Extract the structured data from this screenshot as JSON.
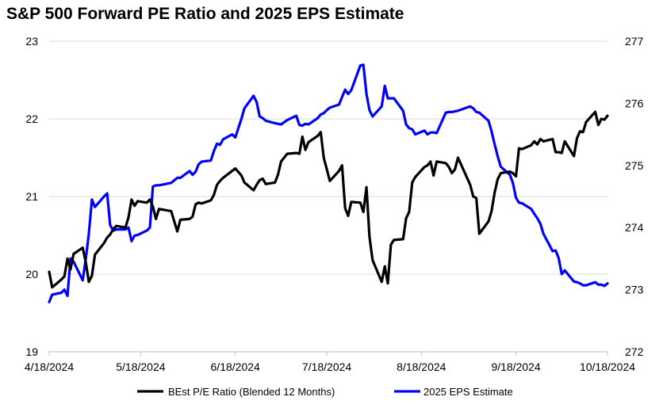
{
  "chart_data": {
    "type": "line",
    "title": "S&P 500 Forward PE Ratio and 2025 EPS Estimate",
    "xlabel": "",
    "ylabel": "",
    "y2label": "",
    "x_ticks": [
      "4/18/2024",
      "5/18/2024",
      "6/18/2024",
      "7/18/2024",
      "8/18/2024",
      "9/18/2024",
      "10/18/2024"
    ],
    "y_left": {
      "min": 19,
      "max": 23,
      "ticks": [
        "19",
        "20",
        "21",
        "22",
        "23"
      ]
    },
    "y_right": {
      "min": 272,
      "max": 277,
      "ticks": [
        "272",
        "273",
        "274",
        "275",
        "276",
        "277"
      ]
    },
    "grid": "horizontal",
    "legend_position": "bottom",
    "series": [
      {
        "name": "BEst P/E Ratio (Blended 12 Months)",
        "axis": "left",
        "color": "#000000",
        "points": [
          [
            "2024-04-18",
            20.03
          ],
          [
            "2024-04-19",
            19.83
          ],
          [
            "2024-04-22",
            19.93
          ],
          [
            "2024-04-23",
            19.97
          ],
          [
            "2024-04-24",
            20.2
          ],
          [
            "2024-04-25",
            20.06
          ],
          [
            "2024-04-26",
            20.26
          ],
          [
            "2024-04-29",
            20.34
          ],
          [
            "2024-04-30",
            20.15
          ],
          [
            "2024-05-01",
            19.9
          ],
          [
            "2024-05-02",
            19.98
          ],
          [
            "2024-05-03",
            20.25
          ],
          [
            "2024-05-06",
            20.4
          ],
          [
            "2024-05-07",
            20.47
          ],
          [
            "2024-05-08",
            20.51
          ],
          [
            "2024-05-09",
            20.58
          ],
          [
            "2024-05-10",
            20.62
          ],
          [
            "2024-05-13",
            20.6
          ],
          [
            "2024-05-14",
            20.73
          ],
          [
            "2024-05-15",
            20.96
          ],
          [
            "2024-05-16",
            20.88
          ],
          [
            "2024-05-17",
            20.94
          ],
          [
            "2024-05-20",
            20.92
          ],
          [
            "2024-05-21",
            20.96
          ],
          [
            "2024-05-22",
            20.87
          ],
          [
            "2024-05-23",
            20.71
          ],
          [
            "2024-05-24",
            20.84
          ],
          [
            "2024-05-28",
            20.81
          ],
          [
            "2024-05-29",
            20.68
          ],
          [
            "2024-05-30",
            20.55
          ],
          [
            "2024-05-31",
            20.7
          ],
          [
            "2024-06-03",
            20.71
          ],
          [
            "2024-06-04",
            20.74
          ],
          [
            "2024-06-05",
            20.9
          ],
          [
            "2024-06-06",
            20.92
          ],
          [
            "2024-06-07",
            20.91
          ],
          [
            "2024-06-10",
            20.95
          ],
          [
            "2024-06-11",
            21.02
          ],
          [
            "2024-06-12",
            21.15
          ],
          [
            "2024-06-13",
            21.2
          ],
          [
            "2024-06-14",
            21.24
          ],
          [
            "2024-06-17",
            21.33
          ],
          [
            "2024-06-18",
            21.36
          ],
          [
            "2024-06-20",
            21.27
          ],
          [
            "2024-06-21",
            21.18
          ],
          [
            "2024-06-24",
            21.08
          ],
          [
            "2024-06-25",
            21.15
          ],
          [
            "2024-06-26",
            21.21
          ],
          [
            "2024-06-27",
            21.23
          ],
          [
            "2024-06-28",
            21.16
          ],
          [
            "2024-07-01",
            21.18
          ],
          [
            "2024-07-02",
            21.28
          ],
          [
            "2024-07-03",
            21.45
          ],
          [
            "2024-07-05",
            21.55
          ],
          [
            "2024-07-08",
            21.56
          ],
          [
            "2024-07-09",
            21.55
          ],
          [
            "2024-07-10",
            21.77
          ],
          [
            "2024-07-11",
            21.6
          ],
          [
            "2024-07-12",
            21.7
          ],
          [
            "2024-07-15",
            21.78
          ],
          [
            "2024-07-16",
            21.83
          ],
          [
            "2024-07-17",
            21.5
          ],
          [
            "2024-07-18",
            21.35
          ],
          [
            "2024-07-19",
            21.2
          ],
          [
            "2024-07-22",
            21.33
          ],
          [
            "2024-07-23",
            21.4
          ],
          [
            "2024-07-24",
            20.85
          ],
          [
            "2024-07-25",
            20.75
          ],
          [
            "2024-07-26",
            20.93
          ],
          [
            "2024-07-29",
            20.92
          ],
          [
            "2024-07-30",
            20.8
          ],
          [
            "2024-07-31",
            21.12
          ],
          [
            "2024-08-01",
            20.48
          ],
          [
            "2024-08-02",
            20.18
          ],
          [
            "2024-08-05",
            19.9
          ],
          [
            "2024-08-06",
            20.1
          ],
          [
            "2024-08-07",
            19.88
          ],
          [
            "2024-08-08",
            20.38
          ],
          [
            "2024-08-09",
            20.44
          ],
          [
            "2024-08-12",
            20.45
          ],
          [
            "2024-08-13",
            20.72
          ],
          [
            "2024-08-14",
            20.8
          ],
          [
            "2024-08-15",
            21.18
          ],
          [
            "2024-08-16",
            21.25
          ],
          [
            "2024-08-19",
            21.38
          ],
          [
            "2024-08-20",
            21.4
          ],
          [
            "2024-08-21",
            21.45
          ],
          [
            "2024-08-22",
            21.27
          ],
          [
            "2024-08-23",
            21.45
          ],
          [
            "2024-08-26",
            21.43
          ],
          [
            "2024-08-27",
            21.38
          ],
          [
            "2024-08-28",
            21.3
          ],
          [
            "2024-08-29",
            21.35
          ],
          [
            "2024-08-30",
            21.5
          ],
          [
            "2024-09-03",
            21.15
          ],
          [
            "2024-09-04",
            21.0
          ],
          [
            "2024-09-05",
            20.98
          ],
          [
            "2024-09-06",
            20.52
          ],
          [
            "2024-09-09",
            20.68
          ],
          [
            "2024-09-10",
            20.81
          ],
          [
            "2024-09-11",
            21.05
          ],
          [
            "2024-09-12",
            21.22
          ],
          [
            "2024-09-13",
            21.3
          ],
          [
            "2024-09-16",
            21.32
          ],
          [
            "2024-09-17",
            21.3
          ],
          [
            "2024-09-18",
            21.26
          ],
          [
            "2024-09-19",
            21.62
          ],
          [
            "2024-09-20",
            21.61
          ],
          [
            "2024-09-23",
            21.66
          ],
          [
            "2024-09-24",
            21.71
          ],
          [
            "2024-09-25",
            21.67
          ],
          [
            "2024-09-26",
            21.74
          ],
          [
            "2024-09-27",
            21.71
          ],
          [
            "2024-09-30",
            21.74
          ],
          [
            "2024-10-01",
            21.57
          ],
          [
            "2024-10-02",
            21.57
          ],
          [
            "2024-10-03",
            21.56
          ],
          [
            "2024-10-04",
            21.71
          ],
          [
            "2024-10-07",
            21.52
          ],
          [
            "2024-10-08",
            21.75
          ],
          [
            "2024-10-09",
            21.84
          ],
          [
            "2024-10-10",
            21.83
          ],
          [
            "2024-10-11",
            21.96
          ],
          [
            "2024-10-14",
            22.09
          ],
          [
            "2024-10-15",
            21.92
          ],
          [
            "2024-10-16",
            22.0
          ],
          [
            "2024-10-17",
            21.99
          ],
          [
            "2024-10-18",
            22.04
          ]
        ]
      },
      {
        "name": "2025 EPS Estimate",
        "axis": "right",
        "color": "#0000ff",
        "points": [
          [
            "2024-04-18",
            272.8
          ],
          [
            "2024-04-19",
            272.92
          ],
          [
            "2024-04-22",
            272.95
          ],
          [
            "2024-04-23",
            273.0
          ],
          [
            "2024-04-24",
            272.9
          ],
          [
            "2024-04-25",
            273.5
          ],
          [
            "2024-04-26",
            273.45
          ],
          [
            "2024-04-29",
            273.15
          ],
          [
            "2024-04-30",
            273.5
          ],
          [
            "2024-05-01",
            273.9
          ],
          [
            "2024-05-02",
            274.45
          ],
          [
            "2024-05-03",
            274.33
          ],
          [
            "2024-05-06",
            274.5
          ],
          [
            "2024-05-07",
            274.55
          ],
          [
            "2024-05-08",
            274.04
          ],
          [
            "2024-05-09",
            273.95
          ],
          [
            "2024-05-10",
            273.97
          ],
          [
            "2024-05-13",
            273.97
          ],
          [
            "2024-05-14",
            274.0
          ],
          [
            "2024-05-15",
            273.78
          ],
          [
            "2024-05-16",
            273.87
          ],
          [
            "2024-05-17",
            273.88
          ],
          [
            "2024-05-20",
            273.95
          ],
          [
            "2024-05-21",
            274.0
          ],
          [
            "2024-05-22",
            274.66
          ],
          [
            "2024-05-23",
            274.68
          ],
          [
            "2024-05-24",
            274.68
          ],
          [
            "2024-05-28",
            274.72
          ],
          [
            "2024-05-29",
            274.76
          ],
          [
            "2024-05-30",
            274.8
          ],
          [
            "2024-05-31",
            274.8
          ],
          [
            "2024-06-03",
            274.91
          ],
          [
            "2024-06-04",
            274.85
          ],
          [
            "2024-06-05",
            274.9
          ],
          [
            "2024-06-06",
            275.02
          ],
          [
            "2024-06-07",
            275.06
          ],
          [
            "2024-06-10",
            275.08
          ],
          [
            "2024-06-11",
            275.23
          ],
          [
            "2024-06-12",
            275.35
          ],
          [
            "2024-06-13",
            275.33
          ],
          [
            "2024-06-14",
            275.42
          ],
          [
            "2024-06-17",
            275.5
          ],
          [
            "2024-06-18",
            275.45
          ],
          [
            "2024-06-20",
            275.75
          ],
          [
            "2024-06-21",
            275.92
          ],
          [
            "2024-06-24",
            276.12
          ],
          [
            "2024-06-25",
            276.02
          ],
          [
            "2024-06-26",
            275.79
          ],
          [
            "2024-06-27",
            275.76
          ],
          [
            "2024-06-28",
            275.72
          ],
          [
            "2024-07-01",
            275.68
          ],
          [
            "2024-07-02",
            275.67
          ],
          [
            "2024-07-03",
            275.66
          ],
          [
            "2024-07-05",
            275.73
          ],
          [
            "2024-07-08",
            275.8
          ],
          [
            "2024-07-09",
            275.65
          ],
          [
            "2024-07-10",
            275.64
          ],
          [
            "2024-07-11",
            275.67
          ],
          [
            "2024-07-12",
            275.66
          ],
          [
            "2024-07-15",
            275.76
          ],
          [
            "2024-07-16",
            275.82
          ],
          [
            "2024-07-17",
            275.84
          ],
          [
            "2024-07-18",
            275.89
          ],
          [
            "2024-07-19",
            275.93
          ],
          [
            "2024-07-22",
            275.98
          ],
          [
            "2024-07-23",
            276.1
          ],
          [
            "2024-07-24",
            276.22
          ],
          [
            "2024-07-25",
            276.15
          ],
          [
            "2024-07-26",
            276.21
          ],
          [
            "2024-07-29",
            276.61
          ],
          [
            "2024-07-30",
            276.62
          ],
          [
            "2024-07-31",
            276.15
          ],
          [
            "2024-08-01",
            275.89
          ],
          [
            "2024-08-02",
            275.79
          ],
          [
            "2024-08-05",
            275.95
          ],
          [
            "2024-08-06",
            276.28
          ],
          [
            "2024-08-07",
            276.08
          ],
          [
            "2024-08-08",
            276.08
          ],
          [
            "2024-08-09",
            276.08
          ],
          [
            "2024-08-12",
            275.88
          ],
          [
            "2024-08-13",
            275.66
          ],
          [
            "2024-08-14",
            275.6
          ],
          [
            "2024-08-15",
            275.58
          ],
          [
            "2024-08-16",
            275.5
          ],
          [
            "2024-08-19",
            275.56
          ],
          [
            "2024-08-20",
            275.5
          ],
          [
            "2024-08-21",
            275.53
          ],
          [
            "2024-08-22",
            275.53
          ],
          [
            "2024-08-23",
            275.52
          ],
          [
            "2024-08-26",
            275.85
          ],
          [
            "2024-08-27",
            275.86
          ],
          [
            "2024-08-28",
            275.86
          ],
          [
            "2024-08-29",
            275.87
          ],
          [
            "2024-08-30",
            275.88
          ],
          [
            "2024-09-03",
            275.95
          ],
          [
            "2024-09-04",
            275.92
          ],
          [
            "2024-09-05",
            275.86
          ],
          [
            "2024-09-06",
            275.85
          ],
          [
            "2024-09-09",
            275.72
          ],
          [
            "2024-09-10",
            275.55
          ],
          [
            "2024-09-11",
            275.34
          ],
          [
            "2024-09-12",
            275.15
          ],
          [
            "2024-09-13",
            274.98
          ],
          [
            "2024-09-16",
            274.85
          ],
          [
            "2024-09-17",
            274.72
          ],
          [
            "2024-09-18",
            274.48
          ],
          [
            "2024-09-19",
            274.4
          ],
          [
            "2024-09-20",
            274.39
          ],
          [
            "2024-09-23",
            274.3
          ],
          [
            "2024-09-24",
            274.22
          ],
          [
            "2024-09-25",
            274.15
          ],
          [
            "2024-09-26",
            274.06
          ],
          [
            "2024-09-27",
            273.9
          ],
          [
            "2024-09-30",
            273.62
          ],
          [
            "2024-10-01",
            273.63
          ],
          [
            "2024-10-02",
            273.51
          ],
          [
            "2024-10-03",
            273.25
          ],
          [
            "2024-10-04",
            273.31
          ],
          [
            "2024-10-07",
            273.13
          ],
          [
            "2024-10-08",
            273.12
          ],
          [
            "2024-10-09",
            273.1
          ],
          [
            "2024-10-10",
            273.07
          ],
          [
            "2024-10-11",
            273.07
          ],
          [
            "2024-10-14",
            273.12
          ],
          [
            "2024-10-15",
            273.08
          ],
          [
            "2024-10-16",
            273.08
          ],
          [
            "2024-10-17",
            273.06
          ],
          [
            "2024-10-18",
            273.1
          ]
        ]
      }
    ]
  }
}
